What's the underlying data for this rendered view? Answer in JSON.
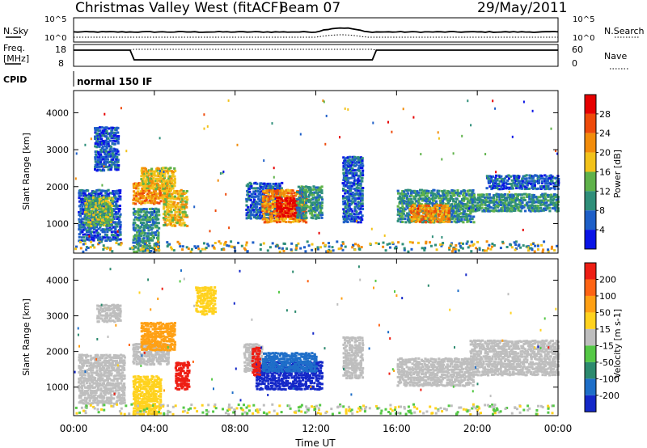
{
  "header": {
    "title": "Christmas Valley West (fitACF)",
    "beam": "Beam 07",
    "date": "29/May/2011"
  },
  "status_panels": {
    "nsky_label": "N.Sky",
    "nsearch_label": "N.Search",
    "nsky_ticks": [
      "10^5",
      "10^0"
    ],
    "nsearch_ticks": [
      "10^5",
      "10^0"
    ],
    "freq_label_1": "Freq.",
    "freq_label_2": "[MHz]",
    "freq_ticks": [
      "18",
      "8"
    ],
    "nave_label": "Nave",
    "nave_ticks": [
      "60",
      "0"
    ],
    "cpid_label": "CPID",
    "cpid_value": "normal 150 IF"
  },
  "chart_data": [
    {
      "type": "heatmap",
      "name": "power",
      "ylabel": "Slant Range [km]",
      "ylim": [
        200,
        4600
      ],
      "y_ticks": [
        "1000",
        "2000",
        "3000",
        "4000"
      ],
      "colorbar_label": "Power [dB]",
      "colorbar_ticks": [
        "4",
        "8",
        "12",
        "16",
        "20",
        "24",
        "28"
      ],
      "colorbar_colors": [
        "#0a14e6",
        "#1e5fc8",
        "#2f8f7a",
        "#5fb24a",
        "#f2c21a",
        "#f28c0a",
        "#ee4a0a",
        "#e60000"
      ],
      "blobs": [
        {
          "t0": 0.2,
          "t1": 2.3,
          "r0": 500,
          "r1": 1900,
          "level": 1
        },
        {
          "t0": 0.5,
          "t1": 1.9,
          "r0": 900,
          "r1": 1700,
          "level": 3
        },
        {
          "t0": 1.0,
          "t1": 2.2,
          "r0": 2400,
          "r1": 3600,
          "level": 1
        },
        {
          "t0": 2.9,
          "t1": 4.6,
          "r0": 1500,
          "r1": 2100,
          "level": 5
        },
        {
          "t0": 3.3,
          "t1": 5.0,
          "r0": 1900,
          "r1": 2500,
          "level": 4
        },
        {
          "t0": 4.4,
          "t1": 5.6,
          "r0": 900,
          "r1": 1900,
          "level": 4
        },
        {
          "t0": 2.9,
          "t1": 4.2,
          "r0": 200,
          "r1": 1400,
          "level": 2
        },
        {
          "t0": 8.5,
          "t1": 10.3,
          "r0": 1100,
          "r1": 2100,
          "level": 1
        },
        {
          "t0": 9.3,
          "t1": 11.5,
          "r0": 1000,
          "r1": 1900,
          "level": 5
        },
        {
          "t0": 10.0,
          "t1": 11.0,
          "r0": 1150,
          "r1": 1700,
          "level": 7
        },
        {
          "t0": 11.0,
          "t1": 12.3,
          "r0": 1100,
          "r1": 2000,
          "level": 2
        },
        {
          "t0": 13.3,
          "t1": 14.3,
          "r0": 1000,
          "r1": 2800,
          "level": 1
        },
        {
          "t0": 16.0,
          "t1": 19.8,
          "r0": 1000,
          "r1": 1900,
          "level": 2
        },
        {
          "t0": 16.6,
          "t1": 18.6,
          "r0": 1000,
          "r1": 1500,
          "level": 5
        },
        {
          "t0": 19.6,
          "t1": 24.0,
          "r0": 1300,
          "r1": 1800,
          "level": 2
        },
        {
          "t0": 20.4,
          "t1": 24.0,
          "r0": 1900,
          "r1": 2300,
          "level": 1
        }
      ],
      "ground_band": {
        "r0": 200,
        "r1": 480,
        "levels": [
          1,
          2,
          4,
          5
        ]
      }
    },
    {
      "type": "heatmap",
      "name": "velocity",
      "xlabel": "Time UT",
      "ylabel": "Slant Range [km]",
      "ylim": [
        200,
        4600
      ],
      "x_ticks": [
        "00:00",
        "04:00",
        "08:00",
        "12:00",
        "16:00",
        "20:00",
        "00:00"
      ],
      "y_ticks": [
        "1000",
        "2000",
        "3000",
        "4000"
      ],
      "colorbar_label": "Velocity [m s-1]",
      "colorbar_ticks": [
        "200",
        "100",
        "50",
        "15",
        "-15",
        "-50",
        "-100",
        "-200"
      ],
      "colorbar_colors": [
        "#1428c8",
        "#1e6ec8",
        "#2c8a6e",
        "#55c846",
        "#bebebe",
        "#ffd21e",
        "#ffa014",
        "#ff6414",
        "#ee1e14"
      ],
      "blobs": [
        {
          "t0": 0.2,
          "t1": 2.5,
          "r0": 500,
          "r1": 1900,
          "color": "#bebebe"
        },
        {
          "t0": 1.1,
          "t1": 2.3,
          "r0": 2800,
          "r1": 3300,
          "color": "#bebebe"
        },
        {
          "t0": 2.9,
          "t1": 4.7,
          "r0": 1600,
          "r1": 2200,
          "color": "#bebebe"
        },
        {
          "t0": 3.3,
          "t1": 5.0,
          "r0": 2000,
          "r1": 2800,
          "color": "#ffa014"
        },
        {
          "t0": 5.0,
          "t1": 5.7,
          "r0": 900,
          "r1": 1700,
          "color": "#ee1e14"
        },
        {
          "t0": 2.9,
          "t1": 4.3,
          "r0": 200,
          "r1": 1300,
          "color": "#ffd21e"
        },
        {
          "t0": 6.0,
          "t1": 7.0,
          "r0": 3000,
          "r1": 3800,
          "color": "#ffd21e"
        },
        {
          "t0": 8.4,
          "t1": 9.3,
          "r0": 1400,
          "r1": 2200,
          "color": "#bebebe"
        },
        {
          "t0": 9.0,
          "t1": 12.3,
          "r0": 900,
          "r1": 1700,
          "color": "#1428c8"
        },
        {
          "t0": 9.3,
          "t1": 12.0,
          "r0": 1400,
          "r1": 1950,
          "color": "#1e6ec8"
        },
        {
          "t0": 8.8,
          "t1": 9.2,
          "r0": 1300,
          "r1": 2100,
          "color": "#ee1e14"
        },
        {
          "t0": 13.3,
          "t1": 14.3,
          "r0": 1200,
          "r1": 2400,
          "color": "#bebebe"
        },
        {
          "t0": 16.0,
          "t1": 19.8,
          "r0": 1000,
          "r1": 1800,
          "color": "#bebebe"
        },
        {
          "t0": 19.6,
          "t1": 24.0,
          "r0": 1300,
          "r1": 2300,
          "color": "#bebebe"
        }
      ],
      "ground_band": {
        "r0": 200,
        "r1": 480,
        "colors": [
          "#55c846",
          "#bebebe",
          "#ffd21e"
        ]
      }
    }
  ]
}
